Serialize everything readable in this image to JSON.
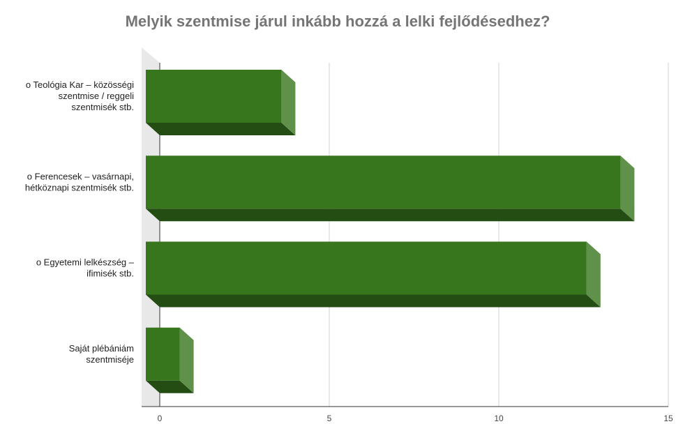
{
  "chart_data": {
    "type": "bar3d_horizontal",
    "title": "Melyik szentmise járul inkább hozzá a lelki fejlődésedhez?",
    "categories": [
      "o Teológia Kar – közösségi szentmise / reggeli szentmisék stb.",
      "o Ferencesek – vasárnapi, hétköznapi szentmisék stb.",
      "o Egyetemi lelkészség – ifimisék stb.",
      "Saját plébániám szentmiséje"
    ],
    "values": [
      4,
      14,
      13,
      1
    ],
    "color": "#38761d",
    "xlim": [
      0,
      15
    ],
    "xticks": [
      0,
      5,
      10,
      15
    ],
    "grid": true
  }
}
